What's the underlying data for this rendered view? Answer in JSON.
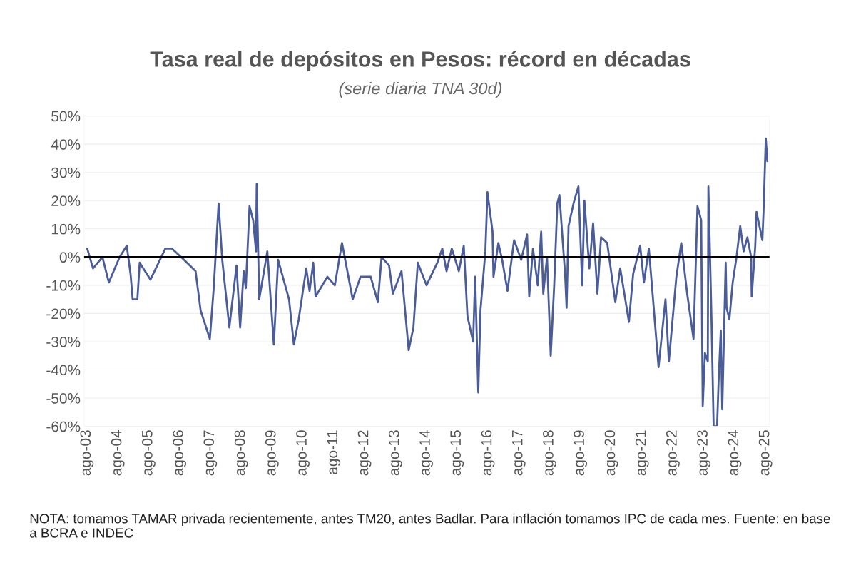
{
  "chart_data": {
    "type": "line",
    "title": "Tasa real de depósitos en Pesos: récord en décadas",
    "subtitle": "(serie diaria TNA 30d)",
    "annotations": [
      "NOTA: tomamos TAMAR privada recientemente, antes TM20, antes Badlar. Para inflación tomamos IPC de cada mes. Fuente: en base a BCRA e INDEC"
    ],
    "series": [
      {
        "color": "#4a5d9a",
        "x": [
          "2003-08-07",
          "2003-10-15",
          "2004-02-03",
          "2004-04-19",
          "2004-08-25",
          "2004-11-17",
          "2005-01-01",
          "2005-01-26",
          "2005-03-23",
          "2005-04-19",
          "2005-08-25",
          "2006-02-17",
          "2006-05-07",
          "2006-09-27",
          "2007-02-10",
          "2007-04-11",
          "2007-07-29",
          "2007-09-13",
          "2007-11-10",
          "2007-12-23",
          "2008-03-16",
          "2008-06-09",
          "2008-07-22",
          "2008-09-02",
          "2008-09-27",
          "2008-11-10",
          "2008-12-23",
          "2009-01-26",
          "2009-02-03",
          "2009-03-05",
          "2009-06-09",
          "2009-08-25",
          "2009-10-15",
          "2010-02-21",
          "2010-04-19",
          "2010-06-16",
          "2010-09-13",
          "2010-10-22",
          "2010-12-05",
          "2011-01-01",
          "2011-05-21",
          "2011-08-17",
          "2011-11-10",
          "2012-03-16",
          "2012-06-16",
          "2012-10-15",
          "2013-01-08",
          "2013-02-21",
          "2013-05-21",
          "2013-07-04",
          "2013-10-15",
          "2014-01-08",
          "2014-03-05",
          "2014-04-26",
          "2014-08-07",
          "2014-12-13",
          "2015-02-10",
          "2015-04-01",
          "2015-06-02",
          "2015-08-25",
          "2015-10-22",
          "2015-12-05",
          "2016-02-10",
          "2016-03-05",
          "2016-04-11",
          "2016-05-07",
          "2016-07-04",
          "2016-07-29",
          "2016-09-27",
          "2016-10-08",
          "2016-12-05",
          "2017-01-19",
          "2017-03-23",
          "2017-06-09",
          "2017-09-02",
          "2017-11-10",
          "2017-12-05",
          "2018-01-19",
          "2018-03-16",
          "2018-04-26",
          "2018-05-21",
          "2018-07-04",
          "2018-08-17",
          "2018-09-27",
          "2018-11-03",
          "2018-11-28",
          "2019-02-03",
          "2019-02-21",
          "2019-03-16",
          "2019-05-14",
          "2019-07-11",
          "2019-08-07",
          "2019-08-25",
          "2019-09-20",
          "2019-11-17",
          "2020-01-01",
          "2020-02-21",
          "2020-04-04",
          "2020-06-16",
          "2020-09-20",
          "2020-11-17",
          "2021-02-28",
          "2021-04-19",
          "2021-07-11",
          "2021-08-25",
          "2021-10-22",
          "2021-12-05",
          "2022-02-14",
          "2022-05-07",
          "2022-06-16",
          "2022-09-13",
          "2022-11-10",
          "2023-01-19",
          "2023-04-04",
          "2023-05-21",
          "2023-07-04",
          "2023-07-22",
          "2023-08-17",
          "2023-09-20",
          "2023-09-27",
          "2023-11-03",
          "2023-11-28",
          "2024-01-08",
          "2024-01-26",
          "2024-02-21",
          "2024-03-09",
          "2024-04-19",
          "2024-04-29",
          "2024-06-02",
          "2024-07-11",
          "2024-08-25",
          "2024-10-08",
          "2024-11-17",
          "2025-01-01",
          "2025-02-14",
          "2025-02-21",
          "2025-04-04",
          "2025-04-19",
          "2025-06-27",
          "2025-07-11",
          "2025-08-07",
          "2025-08-25"
        ],
        "values": [
          3,
          -4,
          0,
          -9,
          0,
          4,
          -6,
          -15,
          -15,
          -2,
          -8,
          3,
          3,
          -1,
          -5,
          -19,
          -29,
          -11,
          19,
          -1,
          -25,
          -3,
          -25,
          -5,
          -11,
          18,
          13,
          2,
          26,
          -15,
          2,
          -31,
          -1,
          -15,
          -31,
          -22,
          -4,
          -12,
          -2,
          -14,
          -7,
          -10,
          5,
          -15,
          -7,
          -7,
          -16,
          0,
          -3,
          -13,
          -5,
          -33,
          -25,
          -2,
          -10,
          -2,
          3,
          -5,
          3,
          -5,
          4,
          -21,
          -30,
          -7,
          -48,
          -19,
          2,
          23,
          9,
          -7,
          5,
          -1,
          -12,
          6,
          -1,
          8,
          -14,
          3,
          -10,
          9,
          -13,
          0,
          -35,
          -10,
          19,
          22,
          -6,
          -18,
          11,
          19,
          25,
          4,
          -10,
          20,
          -4,
          12,
          -13,
          7,
          5,
          -16,
          -4,
          -23,
          -6,
          4,
          -9,
          3,
          -13,
          -39,
          -15,
          -37,
          -7,
          5,
          -13,
          -29,
          18,
          13,
          -53,
          -34,
          -37,
          25,
          -22,
          -60,
          -60,
          -44,
          -26,
          -54,
          -2,
          -18,
          -22,
          -9,
          0,
          11,
          2,
          7,
          0,
          -14,
          4,
          16,
          6,
          16,
          42,
          34
        ]
      }
    ],
    "xlim": [
      "2003-07-01",
      "2025-09-20"
    ],
    "xticks": [
      {
        "value": "2003-08-01",
        "label": "ago-03"
      },
      {
        "value": "2004-08-01",
        "label": "ago-04"
      },
      {
        "value": "2005-08-01",
        "label": "ago-05"
      },
      {
        "value": "2006-08-01",
        "label": "ago-06"
      },
      {
        "value": "2007-08-01",
        "label": "ago-07"
      },
      {
        "value": "2008-08-01",
        "label": "ago-08"
      },
      {
        "value": "2009-08-01",
        "label": "ago-09"
      },
      {
        "value": "2010-08-01",
        "label": "ago-10"
      },
      {
        "value": "2011-08-01",
        "label": "ago-11"
      },
      {
        "value": "2012-08-01",
        "label": "ago-12"
      },
      {
        "value": "2013-08-01",
        "label": "ago-13"
      },
      {
        "value": "2014-08-01",
        "label": "ago-14"
      },
      {
        "value": "2015-08-01",
        "label": "ago-15"
      },
      {
        "value": "2016-08-01",
        "label": "ago-16"
      },
      {
        "value": "2017-08-01",
        "label": "ago-17"
      },
      {
        "value": "2018-08-01",
        "label": "ago-18"
      },
      {
        "value": "2019-08-01",
        "label": "ago-19"
      },
      {
        "value": "2020-08-01",
        "label": "ago-20"
      },
      {
        "value": "2021-08-01",
        "label": "ago-21"
      },
      {
        "value": "2022-08-01",
        "label": "ago-22"
      },
      {
        "value": "2023-08-01",
        "label": "ago-23"
      },
      {
        "value": "2024-08-01",
        "label": "ago-24"
      },
      {
        "value": "2025-08-01",
        "label": "ago-25"
      }
    ],
    "ylim": [
      -60,
      50
    ],
    "yticks": [
      {
        "value": 50,
        "label": "50%"
      },
      {
        "value": 40,
        "label": "40%"
      },
      {
        "value": 30,
        "label": "30%"
      },
      {
        "value": 20,
        "label": "20%"
      },
      {
        "value": 10,
        "label": "10%"
      },
      {
        "value": 0,
        "label": "0%"
      },
      {
        "value": -10,
        "label": "-10%"
      },
      {
        "value": -20,
        "label": "-20%"
      },
      {
        "value": -30,
        "label": "-30%"
      },
      {
        "value": -40,
        "label": "-40%"
      },
      {
        "value": -50,
        "label": "-50%"
      },
      {
        "value": -60,
        "label": "-60%"
      }
    ],
    "grid": "y",
    "ref_lines": [
      {
        "axis": "y",
        "value": 0,
        "color": "#000000"
      }
    ]
  }
}
